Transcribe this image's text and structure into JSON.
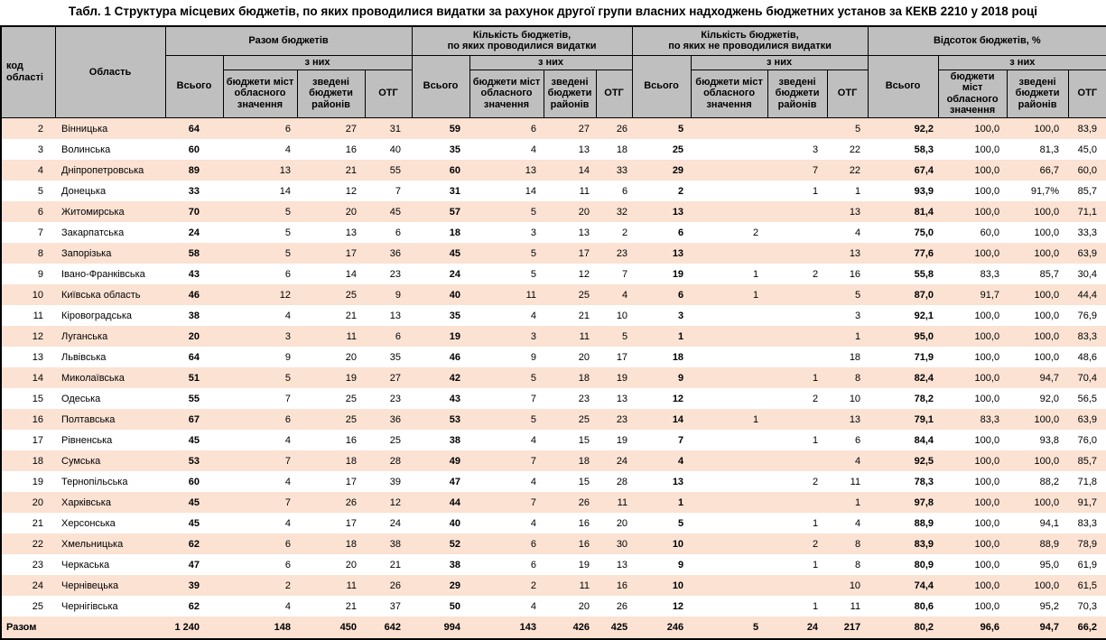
{
  "title": "Табл. 1 Структура місцевих бюджетів, по яких проводилися видатки за рахунок другої групи власних надходжень бюджетних установ за КЕКВ 2210 у 2018 році",
  "colors": {
    "header_bg": "#BFBFBF",
    "stripe_bg": "#FBE2D3",
    "border": "#000000"
  },
  "header": {
    "col_kod": "код області",
    "col_oblast": "Область",
    "group1": "Разом бюджетів",
    "group2": "Кількість бюджетів,\nпо яких проводилися видатки",
    "group3": "Кількість бюджетів,\nпо яких не проводилися видатки",
    "group4": "Відсоток бюджетів, %",
    "total_col": "Всього",
    "of_them": "з них",
    "sub1": "бюджети міст обласного значення",
    "sub2": "зведені бюджети районів",
    "sub3": "ОТГ"
  },
  "rows": [
    {
      "kod": 2,
      "oblast": "Вінницька",
      "g1": [
        64,
        6,
        27,
        31
      ],
      "g2": [
        59,
        6,
        27,
        26
      ],
      "g3": [
        5,
        "",
        "",
        5
      ],
      "g4": [
        "92,2",
        "100,0",
        "100,0",
        "83,9"
      ]
    },
    {
      "kod": 3,
      "oblast": "Волинська",
      "g1": [
        60,
        4,
        16,
        40
      ],
      "g2": [
        35,
        4,
        13,
        18
      ],
      "g3": [
        25,
        "",
        3,
        22
      ],
      "g4": [
        "58,3",
        "100,0",
        "81,3",
        "45,0"
      ]
    },
    {
      "kod": 4,
      "oblast": "Дніпропетровська",
      "g1": [
        89,
        13,
        21,
        55
      ],
      "g2": [
        60,
        13,
        14,
        33
      ],
      "g3": [
        29,
        "",
        7,
        22
      ],
      "g4": [
        "67,4",
        "100,0",
        "66,7",
        "60,0"
      ]
    },
    {
      "kod": 5,
      "oblast": "Донецька",
      "g1": [
        33,
        14,
        12,
        7
      ],
      "g2": [
        31,
        14,
        11,
        6
      ],
      "g3": [
        2,
        "",
        1,
        1
      ],
      "g4": [
        "93,9",
        "100,0",
        "91,7%",
        "85,7"
      ]
    },
    {
      "kod": 6,
      "oblast": "Житомирська",
      "g1": [
        70,
        5,
        20,
        45
      ],
      "g2": [
        57,
        5,
        20,
        32
      ],
      "g3": [
        13,
        "",
        "",
        13
      ],
      "g4": [
        "81,4",
        "100,0",
        "100,0",
        "71,1"
      ]
    },
    {
      "kod": 7,
      "oblast": "Закарпатська",
      "g1": [
        24,
        5,
        13,
        6
      ],
      "g2": [
        18,
        3,
        13,
        2
      ],
      "g3": [
        6,
        2,
        "",
        4
      ],
      "g4": [
        "75,0",
        "60,0",
        "100,0",
        "33,3"
      ]
    },
    {
      "kod": 8,
      "oblast": "Запорізька",
      "g1": [
        58,
        5,
        17,
        36
      ],
      "g2": [
        45,
        5,
        17,
        23
      ],
      "g3": [
        13,
        "",
        "",
        13
      ],
      "g4": [
        "77,6",
        "100,0",
        "100,0",
        "63,9"
      ]
    },
    {
      "kod": 9,
      "oblast": "Івано-Франківська",
      "g1": [
        43,
        6,
        14,
        23
      ],
      "g2": [
        24,
        5,
        12,
        7
      ],
      "g3": [
        19,
        1,
        2,
        16
      ],
      "g4": [
        "55,8",
        "83,3",
        "85,7",
        "30,4"
      ]
    },
    {
      "kod": 10,
      "oblast": "Київська область",
      "g1": [
        46,
        12,
        25,
        9
      ],
      "g2": [
        40,
        11,
        25,
        4
      ],
      "g3": [
        6,
        1,
        "",
        5
      ],
      "g4": [
        "87,0",
        "91,7",
        "100,0",
        "44,4"
      ]
    },
    {
      "kod": 11,
      "oblast": "Кіровоградська",
      "g1": [
        38,
        4,
        21,
        13
      ],
      "g2": [
        35,
        4,
        21,
        10
      ],
      "g3": [
        3,
        "",
        "",
        3
      ],
      "g4": [
        "92,1",
        "100,0",
        "100,0",
        "76,9"
      ]
    },
    {
      "kod": 12,
      "oblast": "Луганська",
      "g1": [
        20,
        3,
        11,
        6
      ],
      "g2": [
        19,
        3,
        11,
        5
      ],
      "g3": [
        1,
        "",
        "",
        1
      ],
      "g4": [
        "95,0",
        "100,0",
        "100,0",
        "83,3"
      ]
    },
    {
      "kod": 13,
      "oblast": "Львівська",
      "g1": [
        64,
        9,
        20,
        35
      ],
      "g2": [
        46,
        9,
        20,
        17
      ],
      "g3": [
        18,
        "",
        "",
        18
      ],
      "g4": [
        "71,9",
        "100,0",
        "100,0",
        "48,6"
      ]
    },
    {
      "kod": 14,
      "oblast": "Миколаївська",
      "g1": [
        51,
        5,
        19,
        27
      ],
      "g2": [
        42,
        5,
        18,
        19
      ],
      "g3": [
        9,
        "",
        1,
        8
      ],
      "g4": [
        "82,4",
        "100,0",
        "94,7",
        "70,4"
      ]
    },
    {
      "kod": 15,
      "oblast": "Одеська",
      "g1": [
        55,
        7,
        25,
        23
      ],
      "g2": [
        43,
        7,
        23,
        13
      ],
      "g3": [
        12,
        "",
        2,
        10
      ],
      "g4": [
        "78,2",
        "100,0",
        "92,0",
        "56,5"
      ]
    },
    {
      "kod": 16,
      "oblast": "Полтавська",
      "g1": [
        67,
        6,
        25,
        36
      ],
      "g2": [
        53,
        5,
        25,
        23
      ],
      "g3": [
        14,
        1,
        "",
        13
      ],
      "g4": [
        "79,1",
        "83,3",
        "100,0",
        "63,9"
      ]
    },
    {
      "kod": 17,
      "oblast": "Рівненська",
      "g1": [
        45,
        4,
        16,
        25
      ],
      "g2": [
        38,
        4,
        15,
        19
      ],
      "g3": [
        7,
        "",
        1,
        6
      ],
      "g4": [
        "84,4",
        "100,0",
        "93,8",
        "76,0"
      ]
    },
    {
      "kod": 18,
      "oblast": "Сумська",
      "g1": [
        53,
        7,
        18,
        28
      ],
      "g2": [
        49,
        7,
        18,
        24
      ],
      "g3": [
        4,
        "",
        "",
        4
      ],
      "g4": [
        "92,5",
        "100,0",
        "100,0",
        "85,7"
      ]
    },
    {
      "kod": 19,
      "oblast": "Тернопільська",
      "g1": [
        60,
        4,
        17,
        39
      ],
      "g2": [
        47,
        4,
        15,
        28
      ],
      "g3": [
        13,
        "",
        2,
        11
      ],
      "g4": [
        "78,3",
        "100,0",
        "88,2",
        "71,8"
      ]
    },
    {
      "kod": 20,
      "oblast": "Харківська",
      "g1": [
        45,
        7,
        26,
        12
      ],
      "g2": [
        44,
        7,
        26,
        11
      ],
      "g3": [
        1,
        "",
        "",
        1
      ],
      "g4": [
        "97,8",
        "100,0",
        "100,0",
        "91,7"
      ]
    },
    {
      "kod": 21,
      "oblast": "Херсонська",
      "g1": [
        45,
        4,
        17,
        24
      ],
      "g2": [
        40,
        4,
        16,
        20
      ],
      "g3": [
        5,
        "",
        1,
        4
      ],
      "g4": [
        "88,9",
        "100,0",
        "94,1",
        "83,3"
      ]
    },
    {
      "kod": 22,
      "oblast": "Хмельницька",
      "g1": [
        62,
        6,
        18,
        38
      ],
      "g2": [
        52,
        6,
        16,
        30
      ],
      "g3": [
        10,
        "",
        2,
        8
      ],
      "g4": [
        "83,9",
        "100,0",
        "88,9",
        "78,9"
      ]
    },
    {
      "kod": 23,
      "oblast": "Черкаська",
      "g1": [
        47,
        6,
        20,
        21
      ],
      "g2": [
        38,
        6,
        19,
        13
      ],
      "g3": [
        9,
        "",
        1,
        8
      ],
      "g4": [
        "80,9",
        "100,0",
        "95,0",
        "61,9"
      ]
    },
    {
      "kod": 24,
      "oblast": "Чернівецька",
      "g1": [
        39,
        2,
        11,
        26
      ],
      "g2": [
        29,
        2,
        11,
        16
      ],
      "g3": [
        10,
        "",
        "",
        10
      ],
      "g4": [
        "74,4",
        "100,0",
        "100,0",
        "61,5"
      ]
    },
    {
      "kod": 25,
      "oblast": "Чернігівська",
      "g1": [
        62,
        4,
        21,
        37
      ],
      "g2": [
        50,
        4,
        20,
        26
      ],
      "g3": [
        12,
        "",
        1,
        11
      ],
      "g4": [
        "80,6",
        "100,0",
        "95,2",
        "70,3"
      ]
    }
  ],
  "total": {
    "label": "Разом",
    "g1": [
      "1 240",
      "148",
      "450",
      "642"
    ],
    "g2": [
      "994",
      "143",
      "426",
      "425"
    ],
    "g3": [
      "246",
      "5",
      "24",
      "217"
    ],
    "g4": [
      "80,2",
      "96,6",
      "94,7",
      "66,2"
    ]
  }
}
